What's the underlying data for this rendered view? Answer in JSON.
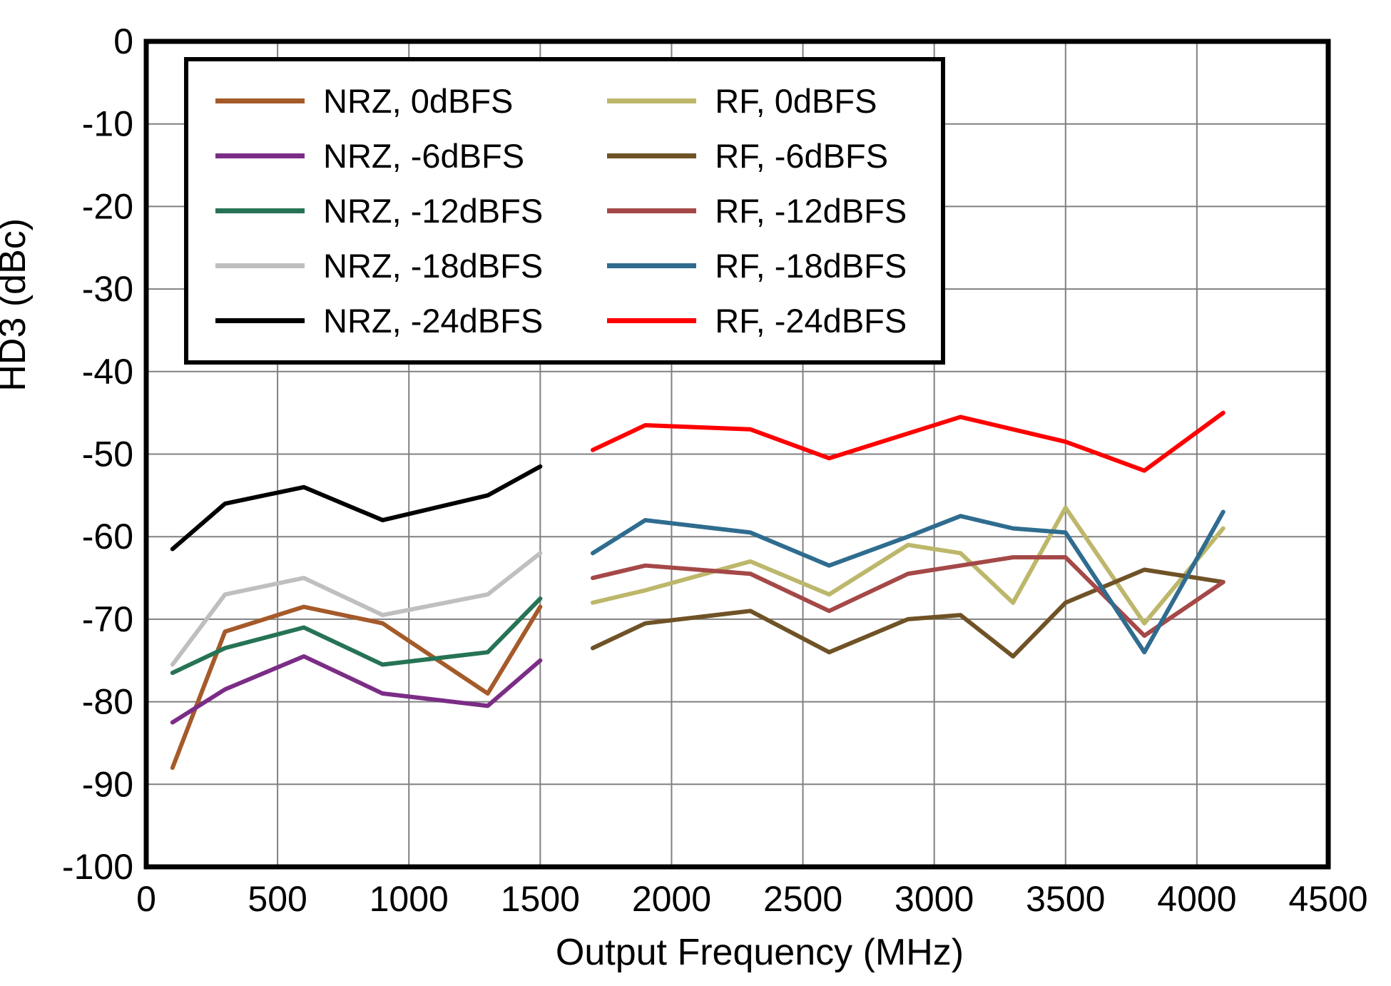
{
  "figure": {
    "background": "#FFFFFF",
    "grid_color": "#808080",
    "border_color": "#000000"
  },
  "chart_data": {
    "type": "line",
    "title": "",
    "xlabel": "Output Frequency (MHz)",
    "ylabel": "HD3 (dBc)",
    "xlim": [
      0,
      4500
    ],
    "ylim": [
      -100,
      0
    ],
    "xticks": [
      0,
      500,
      1000,
      1500,
      2000,
      2500,
      3000,
      3500,
      4000,
      4500
    ],
    "yticks": [
      0,
      -10,
      -20,
      -30,
      -40,
      -50,
      -60,
      -70,
      -80,
      -90,
      -100
    ],
    "grid": true,
    "legend_position": "top-left",
    "series": [
      {
        "name": "NRZ, 0dBFS",
        "color": "#A55A2A",
        "x": [
          100,
          300,
          600,
          900,
          1300,
          1500
        ],
        "y": [
          -88,
          -71.5,
          -68.5,
          -70.5,
          -79,
          -68.5
        ]
      },
      {
        "name": "NRZ, -6dBFS",
        "color": "#7B2D86",
        "x": [
          100,
          300,
          600,
          900,
          1300,
          1500
        ],
        "y": [
          -82.5,
          -78.5,
          -74.5,
          -79,
          -80.5,
          -75
        ]
      },
      {
        "name": "NRZ, -12dBFS",
        "color": "#267355",
        "x": [
          100,
          300,
          600,
          900,
          1300,
          1500
        ],
        "y": [
          -76.5,
          -73.5,
          -71,
          -75.5,
          -74,
          -67.5
        ]
      },
      {
        "name": "NRZ, -18dBFS",
        "color": "#BFBFBF",
        "x": [
          100,
          300,
          600,
          900,
          1300,
          1500
        ],
        "y": [
          -75.5,
          -67,
          -65,
          -69.5,
          -67,
          -62
        ]
      },
      {
        "name": "NRZ, -24dBFS",
        "color": "#000000",
        "x": [
          100,
          300,
          600,
          900,
          1300,
          1500
        ],
        "y": [
          -61.5,
          -56,
          -54,
          -58,
          -55,
          -51.5
        ]
      },
      {
        "name": "RF, 0dBFS",
        "color": "#BDB76B",
        "x": [
          1700,
          1900,
          2300,
          2600,
          2900,
          3100,
          3300,
          3500,
          3800,
          4100
        ],
        "y": [
          -68,
          -66.5,
          -63,
          -67,
          -61,
          -62,
          -68,
          -56.5,
          -70.5,
          -59
        ]
      },
      {
        "name": "RF, -6dBFS",
        "color": "#6F5226",
        "x": [
          1700,
          1900,
          2300,
          2600,
          2900,
          3100,
          3300,
          3500,
          3800,
          4100
        ],
        "y": [
          -73.5,
          -70.5,
          -69,
          -74,
          -70,
          -69.5,
          -74.5,
          -68,
          -64,
          -65.5
        ]
      },
      {
        "name": "RF, -12dBFS",
        "color": "#A54848",
        "x": [
          1700,
          1900,
          2300,
          2600,
          2900,
          3100,
          3300,
          3500,
          3800,
          4100
        ],
        "y": [
          -65,
          -63.5,
          -64.5,
          -69,
          -64.5,
          -63.5,
          -62.5,
          -62.5,
          -72,
          -65.5
        ]
      },
      {
        "name": "RF, -18dBFS",
        "color": "#2F6C8F",
        "x": [
          1700,
          1900,
          2300,
          2600,
          2900,
          3100,
          3300,
          3500,
          3800,
          4100
        ],
        "y": [
          -62,
          -58,
          -59.5,
          -63.5,
          -60,
          -57.5,
          -59,
          -59.5,
          -74,
          -57
        ]
      },
      {
        "name": "RF, -24dBFS",
        "color": "#FF0000",
        "x": [
          1700,
          1900,
          2300,
          2600,
          2900,
          3100,
          3300,
          3500,
          3800,
          4100
        ],
        "y": [
          -49.5,
          -46.5,
          -47,
          -50.5,
          -47.5,
          -45.5,
          -47,
          -48.5,
          -52,
          -45
        ]
      }
    ]
  }
}
